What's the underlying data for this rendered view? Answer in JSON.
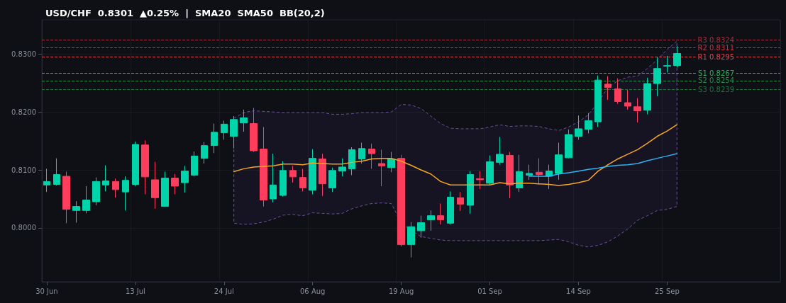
{
  "chart_data": {
    "type": "candlestick",
    "title": "USD/CHF  0.8301  ▲0.25%  |  SMA20  SMA50  BB(20,2)",
    "categories": [
      "30 Jun",
      null,
      null,
      null,
      null,
      null,
      null,
      null,
      null,
      "13 Jul",
      null,
      null,
      null,
      null,
      null,
      null,
      null,
      null,
      "24 Jul",
      null,
      null,
      null,
      null,
      null,
      null,
      null,
      null,
      "06 Aug",
      null,
      null,
      null,
      null,
      null,
      null,
      null,
      null,
      "19 Aug",
      null,
      null,
      null,
      null,
      null,
      null,
      null,
      null,
      "01 Sep",
      null,
      null,
      null,
      null,
      null,
      null,
      null,
      null,
      "14 Sep",
      null,
      null,
      null,
      null,
      null,
      null,
      null,
      null,
      "25 Sep",
      null,
      null,
      null,
      null,
      null,
      null,
      null,
      null,
      null,
      null,
      null
    ],
    "ohlc": [
      [
        0.8074,
        0.8102,
        0.8062,
        0.808
      ],
      [
        0.8075,
        0.812,
        0.8073,
        0.8092
      ],
      [
        0.8089,
        0.8097,
        0.8008,
        0.8032
      ],
      [
        0.803,
        0.8046,
        0.8009,
        0.8037
      ],
      [
        0.803,
        0.8072,
        0.8025,
        0.8048
      ],
      [
        0.8045,
        0.8087,
        0.8039,
        0.808
      ],
      [
        0.8074,
        0.8108,
        0.8063,
        0.8081
      ],
      [
        0.808,
        0.8085,
        0.8052,
        0.8066
      ],
      [
        0.8062,
        0.8089,
        0.803,
        0.8082
      ],
      [
        0.8075,
        0.8149,
        0.8072,
        0.8144
      ],
      [
        0.8143,
        0.8151,
        0.8058,
        0.8088
      ],
      [
        0.8083,
        0.8114,
        0.8033,
        0.8052
      ],
      [
        0.8037,
        0.8097,
        0.8036,
        0.8086
      ],
      [
        0.8086,
        0.8093,
        0.8058,
        0.8072
      ],
      [
        0.8078,
        0.8107,
        0.8061,
        0.8098
      ],
      [
        0.8091,
        0.8132,
        0.8089,
        0.8124
      ],
      [
        0.812,
        0.8148,
        0.8111,
        0.8142
      ],
      [
        0.8142,
        0.818,
        0.8129,
        0.8165
      ],
      [
        0.8164,
        0.8185,
        0.8152,
        0.8179
      ],
      [
        0.8158,
        0.8193,
        0.8137,
        0.8187
      ],
      [
        0.8181,
        0.8204,
        0.8166,
        0.819
      ],
      [
        0.818,
        0.8207,
        0.8131,
        0.8133
      ],
      [
        0.8136,
        0.8174,
        0.8037,
        0.8048
      ],
      [
        0.805,
        0.8128,
        0.8044,
        0.8074
      ],
      [
        0.8056,
        0.8115,
        0.8054,
        0.8099
      ],
      [
        0.8099,
        0.8107,
        0.8078,
        0.8088
      ],
      [
        0.8087,
        0.8102,
        0.8063,
        0.8069
      ],
      [
        0.8065,
        0.8136,
        0.8058,
        0.812
      ],
      [
        0.8119,
        0.8128,
        0.8055,
        0.8076
      ],
      [
        0.8069,
        0.8104,
        0.8062,
        0.8099
      ],
      [
        0.8098,
        0.812,
        0.8089,
        0.8105
      ],
      [
        0.8102,
        0.8139,
        0.8091,
        0.8135
      ],
      [
        0.8119,
        0.8147,
        0.8111,
        0.8137
      ],
      [
        0.8136,
        0.8145,
        0.8102,
        0.8128
      ],
      [
        0.8111,
        0.8135,
        0.8072,
        0.8107
      ],
      [
        0.8104,
        0.8131,
        0.8096,
        0.8119
      ],
      [
        0.812,
        0.8126,
        0.7968,
        0.7971
      ],
      [
        0.7971,
        0.801,
        0.7949,
        0.8002
      ],
      [
        0.7995,
        0.8021,
        0.7983,
        0.8009
      ],
      [
        0.8014,
        0.803,
        0.7995,
        0.8021
      ],
      [
        0.8021,
        0.8042,
        0.8006,
        0.8014
      ],
      [
        0.8008,
        0.8063,
        0.8006,
        0.8053
      ],
      [
        0.8052,
        0.8062,
        0.8029,
        0.8041
      ],
      [
        0.8039,
        0.8098,
        0.8024,
        0.8092
      ],
      [
        0.8085,
        0.8098,
        0.8067,
        0.8083
      ],
      [
        0.8077,
        0.8125,
        0.8074,
        0.8114
      ],
      [
        0.8113,
        0.8157,
        0.8109,
        0.8127
      ],
      [
        0.8125,
        0.8131,
        0.8051,
        0.8074
      ],
      [
        0.8069,
        0.8126,
        0.8062,
        0.8097
      ],
      [
        0.8091,
        0.8109,
        0.8083,
        0.8094
      ],
      [
        0.8096,
        0.812,
        0.8075,
        0.8092
      ],
      [
        0.8089,
        0.8109,
        0.8067,
        0.8098
      ],
      [
        0.8094,
        0.8147,
        0.8083,
        0.8126
      ],
      [
        0.8121,
        0.817,
        0.812,
        0.8161
      ],
      [
        0.8158,
        0.8194,
        0.8152,
        0.8171
      ],
      [
        0.817,
        0.8198,
        0.8163,
        0.8185
      ],
      [
        0.8183,
        0.8263,
        0.8174,
        0.8255
      ],
      [
        0.8248,
        0.8262,
        0.8221,
        0.8242
      ],
      [
        0.824,
        0.8258,
        0.8214,
        0.8218
      ],
      [
        0.8216,
        0.8238,
        0.8204,
        0.821
      ],
      [
        0.8209,
        0.8224,
        0.8182,
        0.8202
      ],
      [
        0.8203,
        0.8259,
        0.8196,
        0.8249
      ],
      [
        0.8249,
        0.8295,
        0.8227,
        0.8275
      ],
      [
        0.8279,
        0.8297,
        0.8268,
        0.828
      ],
      [
        0.828,
        0.8314,
        0.8277,
        0.8301
      ],
      null,
      null,
      null,
      null,
      null,
      null,
      null,
      null,
      null,
      null
    ],
    "colors": [
      "#00d4aa",
      "#00d4aa",
      "#ff3d5c",
      "#00d4aa",
      "#00d4aa",
      "#00d4aa",
      "#00d4aa",
      "#ff3d5c",
      "#00d4aa",
      "#00d4aa",
      "#ff3d5c",
      "#ff3d5c",
      "#00d4aa",
      "#ff3d5c",
      "#00d4aa",
      "#00d4aa",
      "#00d4aa",
      "#00d4aa",
      "#00d4aa",
      "#00d4aa",
      "#00d4aa",
      "#ff3d5c",
      "#ff3d5c",
      "#00d4aa",
      "#00d4aa",
      "#ff3d5c",
      "#ff3d5c",
      "#00d4aa",
      "#ff3d5c",
      "#00d4aa",
      "#00d4aa",
      "#00d4aa",
      "#00d4aa",
      "#ff3d5c",
      "#ff3d5c",
      "#00d4aa",
      "#ff3d5c",
      "#00d4aa",
      "#00d4aa",
      "#00d4aa",
      "#ff3d5c",
      "#00d4aa",
      "#ff3d5c",
      "#00d4aa",
      "#ff3d5c",
      "#00d4aa",
      "#00d4aa",
      "#ff3d5c",
      "#00d4aa",
      "#00d4aa",
      "#ff3d5c",
      "#00d4aa",
      "#00d4aa",
      "#00d4aa",
      "#00d4aa",
      "#00d4aa",
      "#00d4aa",
      "#ff3d5c",
      "#ff3d5c",
      "#ff3d5c",
      "#ff3d5c",
      "#00d4aa",
      "#00d4aa",
      "#00d4aa",
      "#00d4aa",
      null,
      null,
      null,
      null,
      null,
      null,
      null,
      null,
      null,
      null
    ],
    "series": [
      {
        "type": "line",
        "color": "#f5a623",
        "values": [
          null,
          null,
          null,
          null,
          null,
          null,
          null,
          null,
          null,
          null,
          null,
          null,
          null,
          null,
          null,
          null,
          null,
          null,
          null,
          0.8097,
          0.8102,
          0.8105,
          0.8106,
          0.8107,
          0.811,
          0.811,
          0.8109,
          0.8112,
          0.8111,
          0.811,
          0.811,
          0.8113,
          0.8115,
          0.8119,
          0.812,
          0.812,
          0.8115,
          0.8108,
          0.81,
          0.8093,
          0.808,
          0.8074,
          0.8074,
          0.8074,
          0.8074,
          0.8074,
          0.8078,
          0.8076,
          0.8077,
          0.8077,
          0.8076,
          0.8075,
          0.8073,
          0.8075,
          0.8078,
          0.8082,
          0.8098,
          0.8109,
          0.8119,
          0.8127,
          0.8135,
          0.8146,
          0.8158,
          0.8167,
          0.8178,
          null,
          null,
          null,
          null,
          null,
          null,
          null,
          null,
          null,
          null
        ],
        "upper": [
          null,
          null,
          null,
          null,
          null,
          null,
          null,
          null,
          null,
          null,
          null,
          null,
          null,
          null,
          null,
          null,
          null,
          null,
          null,
          0.8189,
          0.8199,
          0.8202,
          0.8201,
          0.82,
          0.8199,
          0.8199,
          0.8199,
          0.8199,
          0.8199,
          0.8196,
          0.8196,
          0.8197,
          0.8199,
          0.8199,
          0.8199,
          0.82,
          0.8213,
          0.8212,
          0.8206,
          0.8193,
          0.818,
          0.8172,
          0.8171,
          0.8171,
          0.8171,
          0.8174,
          0.8178,
          0.8175,
          0.8176,
          0.8176,
          0.8175,
          0.8171,
          0.8168,
          0.8174,
          0.8183,
          0.8195,
          0.8217,
          0.8242,
          0.8254,
          0.826,
          0.8262,
          0.8275,
          0.829,
          0.8308,
          0.8322,
          null,
          null,
          null,
          null,
          null,
          null,
          null,
          null,
          null,
          null
        ],
        "lower": [
          null,
          null,
          null,
          null,
          null,
          null,
          null,
          null,
          null,
          null,
          null,
          null,
          null,
          null,
          null,
          null,
          null,
          null,
          null,
          0.8008,
          0.8006,
          0.8007,
          0.801,
          0.8015,
          0.8022,
          0.8023,
          0.8021,
          0.8026,
          0.8025,
          0.8024,
          0.8025,
          0.8033,
          0.8038,
          0.8042,
          0.8043,
          0.8042,
          0.8008,
          0.7996,
          0.7985,
          0.7982,
          0.7979,
          0.7978,
          0.7978,
          0.7978,
          0.7978,
          0.7978,
          0.7978,
          0.7978,
          0.7978,
          0.7978,
          0.7978,
          0.7979,
          0.798,
          0.7976,
          0.797,
          0.7967,
          0.797,
          0.7976,
          0.7986,
          0.7998,
          0.8013,
          0.8021,
          0.803,
          0.8032,
          0.8037,
          null,
          null,
          null,
          null,
          null,
          null,
          null,
          null,
          null,
          null
        ]
      },
      {
        "type": "line",
        "color": "#29b6f6",
        "values": [
          null,
          null,
          null,
          null,
          null,
          null,
          null,
          null,
          null,
          null,
          null,
          null,
          null,
          null,
          null,
          null,
          null,
          null,
          null,
          null,
          null,
          null,
          null,
          null,
          null,
          null,
          null,
          null,
          null,
          null,
          null,
          null,
          null,
          null,
          null,
          null,
          null,
          null,
          null,
          null,
          null,
          null,
          null,
          null,
          null,
          null,
          null,
          null,
          null,
          0.8089,
          0.8089,
          0.8089,
          0.8093,
          0.8095,
          0.8098,
          0.8101,
          0.8103,
          0.8106,
          0.8108,
          0.8109,
          0.8111,
          0.8116,
          0.812,
          0.8124,
          0.8128,
          null,
          null,
          null,
          null,
          null,
          null,
          null,
          null,
          null,
          null
        ]
      }
    ],
    "ref_lines": [
      {
        "axis": "y",
        "value": 0.8324,
        "label": "R3 0.8324",
        "color": "#a3303a",
        "line_style": "dashed"
      },
      {
        "axis": "y",
        "value": 0.8311,
        "label": "R2 0.8311",
        "color": "#c8343f",
        "line_style": "dashed"
      },
      {
        "axis": "y",
        "value": 0.8295,
        "label": "R1 0.8295",
        "color": "#e5484d",
        "line_style": "dashed"
      },
      {
        "axis": "y",
        "value": 0.8267,
        "label": "S1 0.8267",
        "color": "#2fb257",
        "line_style": "dashed"
      },
      {
        "axis": "y",
        "value": 0.8254,
        "label": "S2 0.8254",
        "color": "#259148",
        "line_style": "dashed"
      },
      {
        "axis": "y",
        "value": 0.8239,
        "label": "S3 0.8239",
        "color": "#1f743b",
        "line_style": "dashed"
      }
    ],
    "ylim": [
      0.7907,
      0.8359
    ],
    "yticks": [
      {
        "value": 0.8,
        "label": "0.8000"
      },
      {
        "value": 0.81,
        "label": "0.8100"
      },
      {
        "value": 0.82,
        "label": "0.8200"
      },
      {
        "value": 0.83,
        "label": "0.8300"
      }
    ],
    "grid": true,
    "marker": "none",
    "line_style": "solid"
  }
}
